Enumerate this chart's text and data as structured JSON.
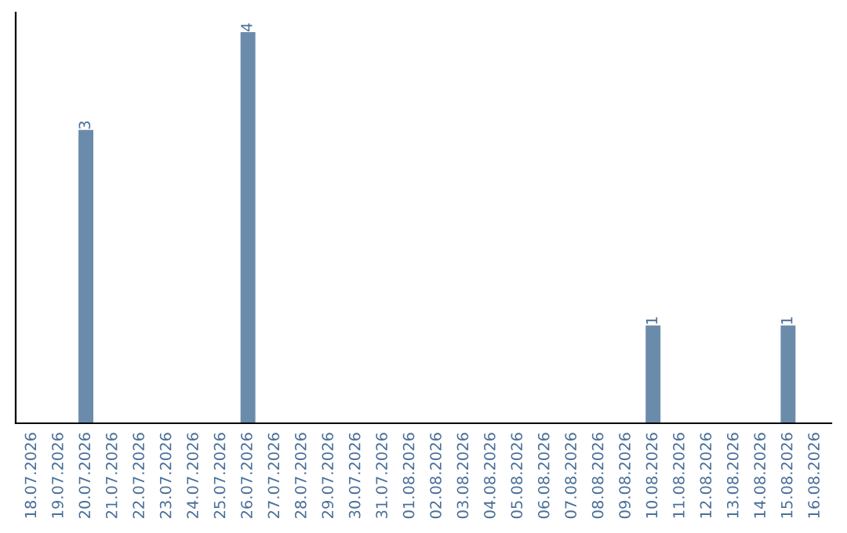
{
  "chart_data": {
    "type": "bar",
    "categories": [
      "18.07.2026",
      "19.07.2026",
      "20.07.2026",
      "21.07.2026",
      "22.07.2026",
      "23.07.2026",
      "24.07.2026",
      "25.07.2026",
      "26.07.2026",
      "27.07.2026",
      "28.07.2026",
      "29.07.2026",
      "30.07.2026",
      "31.07.2026",
      "01.08.2026",
      "02.08.2026",
      "03.08.2026",
      "04.08.2026",
      "05.08.2026",
      "06.08.2026",
      "07.08.2026",
      "08.08.2026",
      "09.08.2026",
      "10.08.2026",
      "11.08.2026",
      "12.08.2026",
      "13.08.2026",
      "14.08.2026",
      "15.08.2026",
      "16.08.2026"
    ],
    "values": [
      0,
      0,
      3,
      0,
      0,
      0,
      0,
      0,
      4,
      0,
      0,
      0,
      0,
      0,
      0,
      0,
      0,
      0,
      0,
      0,
      0,
      0,
      0,
      1,
      0,
      0,
      0,
      0,
      1,
      0
    ],
    "value_labels": [
      null,
      null,
      "3",
      null,
      null,
      null,
      null,
      null,
      "4",
      null,
      null,
      null,
      null,
      null,
      null,
      null,
      null,
      null,
      null,
      null,
      null,
      null,
      null,
      "1",
      null,
      null,
      null,
      null,
      "1",
      null
    ],
    "color": "#6b8bab",
    "tick_labels": "x",
    "grid": false,
    "legend": false
  }
}
